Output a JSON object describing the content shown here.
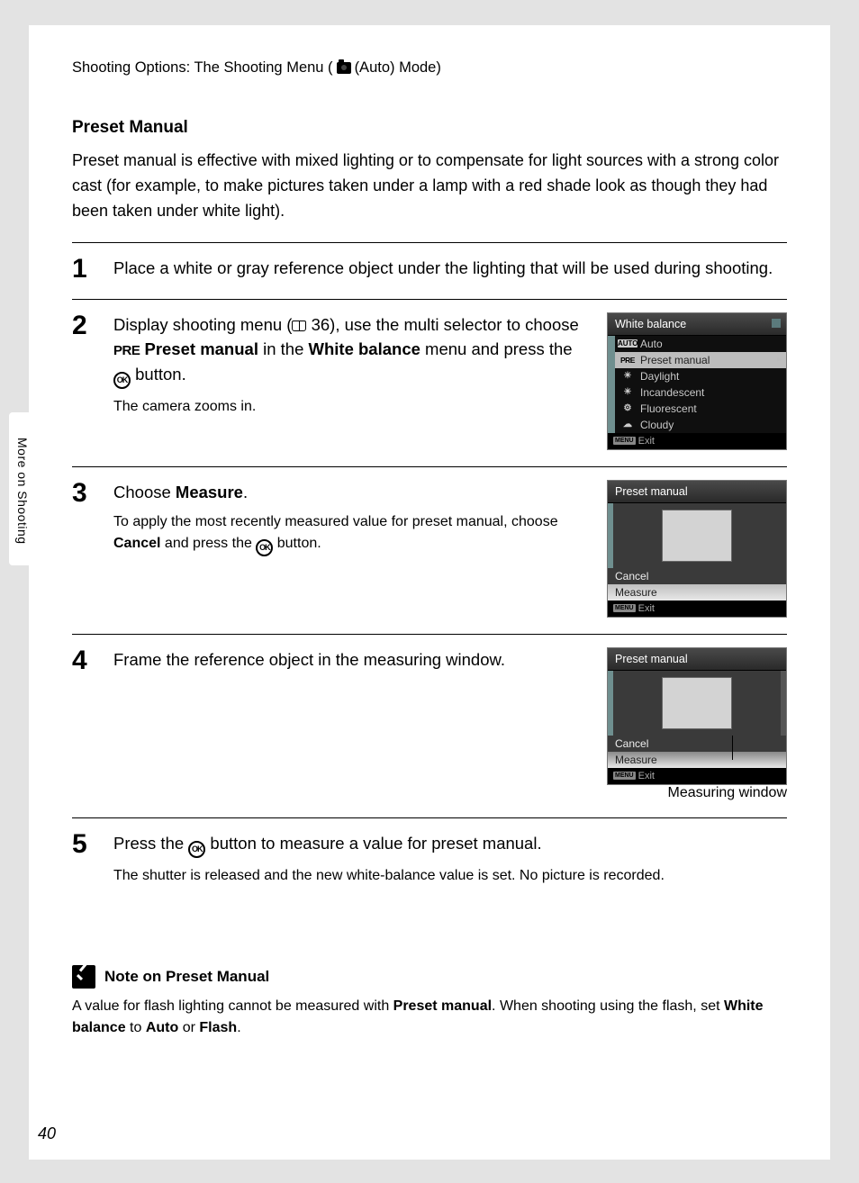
{
  "breadcrumb": {
    "prefix": "Shooting Options: The Shooting Menu (",
    "suffix": " (Auto) Mode)"
  },
  "side_label": "More on Shooting",
  "page_number": "40",
  "section_title": "Preset Manual",
  "intro": "Preset manual is effective with mixed lighting or to compensate for light sources with a strong color cast (for example, to make pictures taken under a lamp with a red shade look as though they had been taken under white light).",
  "steps": {
    "s1": {
      "num": "1",
      "main": "Place a white or gray reference object under the lighting that will be used during shooting."
    },
    "s2": {
      "num": "2",
      "main_a": "Display shooting menu (",
      "main_pageref": " 36), use the multi selector to choose ",
      "main_b": " Preset manual",
      "main_c": " in the ",
      "main_d": "White balance",
      "main_e": " menu and press the ",
      "main_f": " button.",
      "sub": "The camera zooms in."
    },
    "s3": {
      "num": "3",
      "main_a": "Choose ",
      "main_b": "Measure",
      "main_c": ".",
      "sub_a": "To apply the most recently measured value for preset manual, choose ",
      "sub_b": "Cancel",
      "sub_c": " and press the ",
      "sub_d": " button."
    },
    "s4": {
      "num": "4",
      "main": "Frame the reference object in the measuring window.",
      "callout": "Measuring window"
    },
    "s5": {
      "num": "5",
      "main_a": "Press the ",
      "main_b": " button to measure a value for preset manual.",
      "sub": "The shutter is released and the new white-balance value is set. No picture is recorded."
    }
  },
  "lcd_wb": {
    "title": "White balance",
    "items": {
      "auto": {
        "icon": "AUTO",
        "label": "Auto"
      },
      "preset": {
        "icon": "PRE",
        "label": "Preset manual"
      },
      "daylight": {
        "icon": "☀",
        "label": "Daylight"
      },
      "incandescent": {
        "icon": "☀",
        "label": "Incandescent"
      },
      "fluorescent": {
        "icon": "⚙",
        "label": "Fluorescent"
      },
      "cloudy": {
        "icon": "☁",
        "label": "Cloudy"
      }
    },
    "footer_badge": "MENU",
    "footer": "Exit"
  },
  "lcd_pm": {
    "title": "Preset manual",
    "cancel": "Cancel",
    "measure": "Measure",
    "footer_badge": "MENU",
    "footer": "Exit"
  },
  "note": {
    "title": "Note on Preset Manual",
    "body_a": "A value for flash lighting cannot be measured with ",
    "body_b": "Preset manual",
    "body_c": ". When shooting using the flash, set ",
    "body_d": "White balance",
    "body_e": " to ",
    "body_f": "Auto",
    "body_g": " or ",
    "body_h": "Flash",
    "body_i": "."
  },
  "colors": {
    "page_bg": "#e3e3e3",
    "lcd_bg": "#0f0f0f",
    "lcd_sel": "#bdbdbd",
    "lcd_teal": "#6f8f8f"
  }
}
